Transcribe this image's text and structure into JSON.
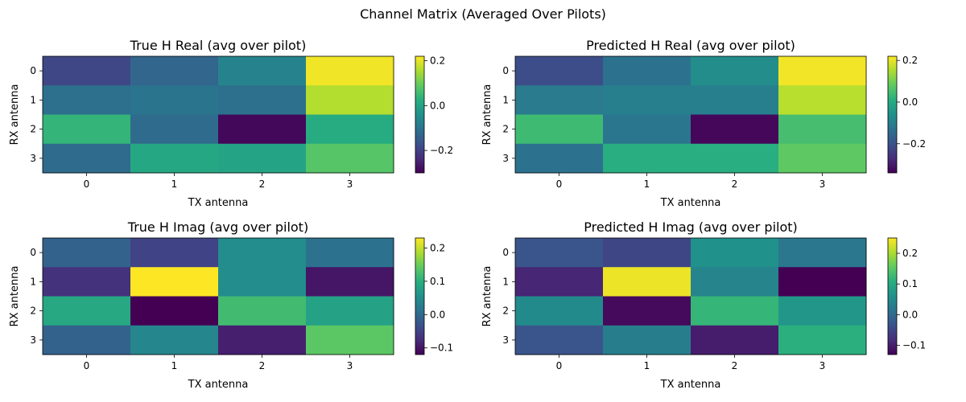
{
  "suptitle": "Channel Matrix (Averaged Over Pilots)",
  "colormap": "viridis",
  "chart_data": [
    {
      "type": "heatmap",
      "title": "True H Real (avg over pilot)",
      "xlabel": "TX antenna",
      "ylabel": "RX antenna",
      "x_ticks": [
        "0",
        "1",
        "2",
        "3"
      ],
      "y_ticks": [
        "0",
        "1",
        "2",
        "3"
      ],
      "values": [
        [
          -0.19,
          -0.13,
          -0.07,
          0.21
        ],
        [
          -0.11,
          -0.1,
          -0.11,
          0.16
        ],
        [
          0.04,
          -0.12,
          -0.29,
          0.02
        ],
        [
          -0.12,
          0.01,
          0.0,
          0.08
        ]
      ],
      "vmin": -0.3,
      "vmax": 0.22,
      "colorbar_ticks": [
        -0.2,
        0.0,
        0.2
      ],
      "colorbar_labels": [
        "−0.2",
        "0.0",
        "0.2"
      ]
    },
    {
      "type": "heatmap",
      "title": "Predicted H Real (avg over pilot)",
      "xlabel": "TX antenna",
      "ylabel": "RX antenna",
      "x_ticks": [
        "0",
        "1",
        "2",
        "3"
      ],
      "y_ticks": [
        "0",
        "1",
        "2",
        "3"
      ],
      "values": [
        [
          -0.21,
          -0.13,
          -0.07,
          0.21
        ],
        [
          -0.11,
          -0.1,
          -0.1,
          0.16
        ],
        [
          0.04,
          -0.12,
          -0.33,
          0.05
        ],
        [
          -0.13,
          0.01,
          0.01,
          0.08
        ]
      ],
      "vmin": -0.34,
      "vmax": 0.22,
      "colorbar_ticks": [
        -0.2,
        0.0,
        0.2
      ],
      "colorbar_labels": [
        "−0.2",
        "0.0",
        "0.2"
      ]
    },
    {
      "type": "heatmap",
      "title": "True H Imag (avg over pilot)",
      "xlabel": "TX antenna",
      "ylabel": "RX antenna",
      "x_ticks": [
        "0",
        "1",
        "2",
        "3"
      ],
      "y_ticks": [
        "0",
        "1",
        "2",
        "3"
      ],
      "values": [
        [
          -0.01,
          -0.05,
          0.05,
          0.01
        ],
        [
          -0.07,
          0.23,
          0.05,
          -0.1
        ],
        [
          0.09,
          -0.12,
          0.12,
          0.08
        ],
        [
          -0.01,
          0.04,
          -0.09,
          0.14
        ]
      ],
      "vmin": -0.12,
      "vmax": 0.23,
      "colorbar_ticks": [
        -0.1,
        0.0,
        0.1,
        0.2
      ],
      "colorbar_labels": [
        "−0.1",
        "0.0",
        "0.1",
        "0.2"
      ]
    },
    {
      "type": "heatmap",
      "title": "Predicted H Imag (avg over pilot)",
      "xlabel": "TX antenna",
      "ylabel": "RX antenna",
      "x_ticks": [
        "0",
        "1",
        "2",
        "3"
      ],
      "y_ticks": [
        "0",
        "1",
        "2",
        "3"
      ],
      "values": [
        [
          -0.03,
          -0.05,
          0.06,
          0.02
        ],
        [
          -0.09,
          0.24,
          0.04,
          -0.13
        ],
        [
          0.05,
          -0.12,
          0.12,
          0.07
        ],
        [
          -0.03,
          0.03,
          -0.1,
          0.11
        ]
      ],
      "vmin": -0.13,
      "vmax": 0.25,
      "colorbar_ticks": [
        -0.1,
        0.0,
        0.1,
        0.2
      ],
      "colorbar_labels": [
        "−0.1",
        "0.0",
        "0.1",
        "0.2"
      ]
    }
  ]
}
